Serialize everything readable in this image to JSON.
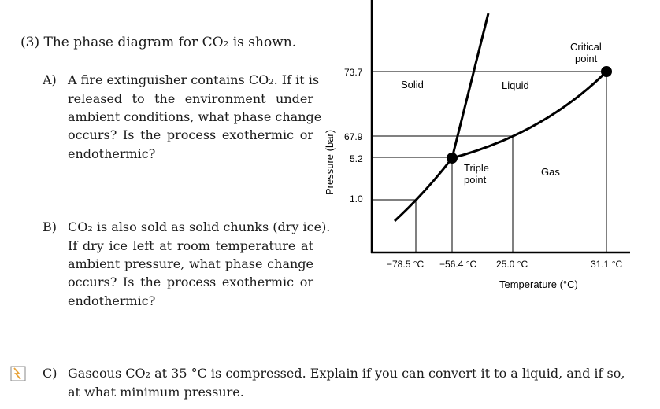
{
  "heading": "(3) The phase diagram for CO₂ is shown.",
  "questions": {
    "a": {
      "letter": "A)",
      "lines": [
        "A fire extinguisher contains CO₂.  If it is",
        "released to the environment under",
        "ambient conditions, what phase change",
        "occurs?  Is the process exothermic or",
        "endothermic?"
      ]
    },
    "b": {
      "letter": "B)",
      "lines": [
        "CO₂ is also sold as solid chunks (dry ice).",
        "If dry ice left at room temperature at",
        "ambient pressure, what phase change",
        "occurs?  Is the process exothermic or",
        "endothermic?"
      ]
    },
    "c": {
      "letter": "C)",
      "lines": [
        "Gaseous CO₂ at 35 °C is compressed.  Explain if you can convert it to a liquid, and if so,",
        "at what minimum pressure."
      ]
    }
  },
  "diagram": {
    "y_axis_label": "Pressure (bar)",
    "x_axis_label": "Temperature (°C)",
    "pressure_ticks": [
      "73.7",
      "67.9",
      "5.2",
      "1.0"
    ],
    "temperature_ticks": [
      "−78.5 °C",
      "−56.4 °C",
      "25.0 °C",
      "31.1 °C"
    ],
    "regions": {
      "solid": "Solid",
      "liquid": "Liquid",
      "gas": "Gas"
    },
    "triple_point_lines": [
      "Triple",
      "point"
    ],
    "critical_point_lines": [
      "Critical",
      "point"
    ]
  },
  "colors": {
    "text": "#1a1a1a",
    "lines": "#000000",
    "icon_accent": "#e8a33a"
  }
}
